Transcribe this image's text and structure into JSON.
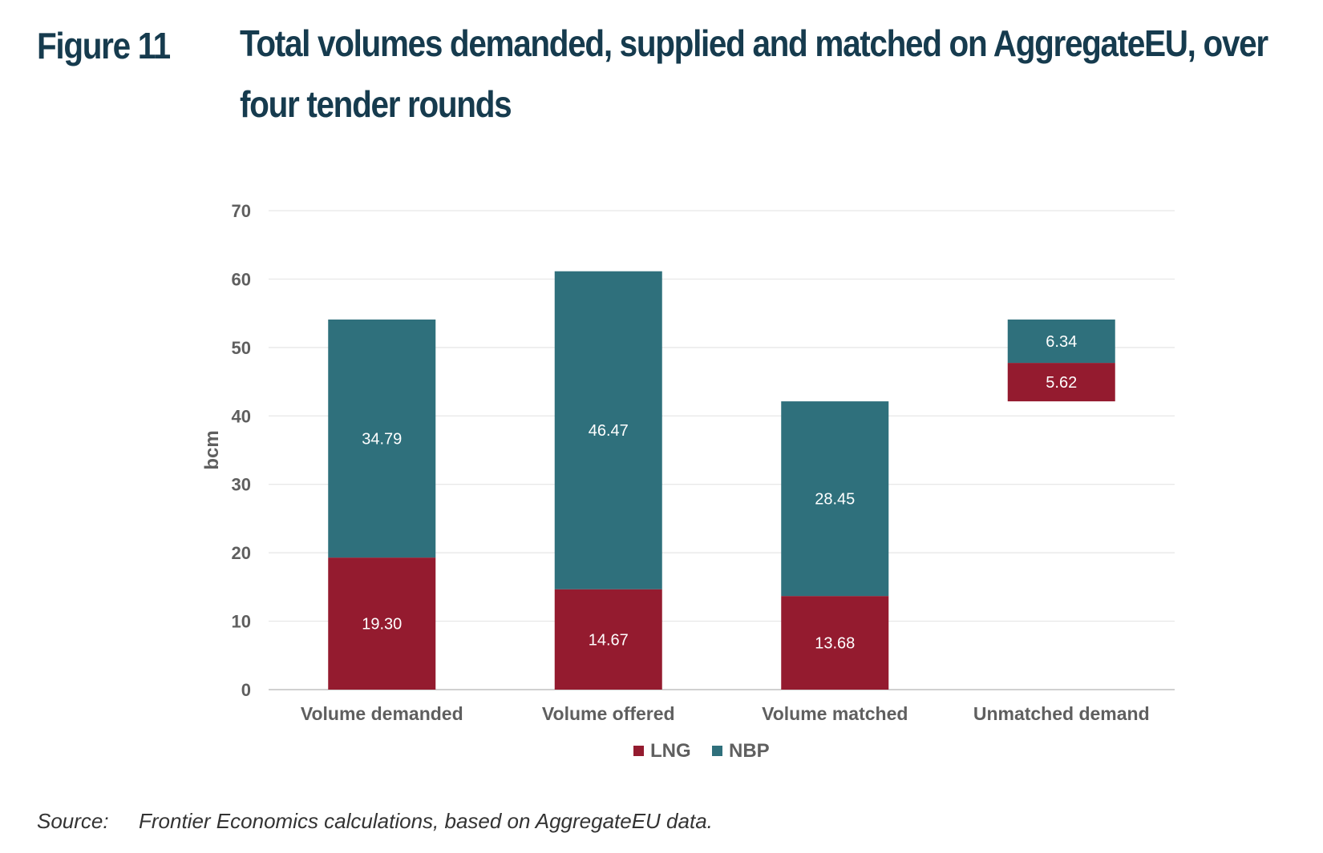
{
  "figure": {
    "number": "Figure 11",
    "title": "Total volumes demanded, supplied and matched on AggregateEU, over four tender rounds"
  },
  "source": {
    "label": "Source:",
    "text": "Frontier Economics calculations, based on AggregateEU data."
  },
  "colors": {
    "LNG": "#941b2f",
    "NBP": "#2f707c",
    "grid": "#e6e6e6",
    "axis_text": "#5f5f5f"
  },
  "chart_data": {
    "type": "bar",
    "stacked": true,
    "title": "",
    "xlabel": "",
    "ylabel": "bcm",
    "ylim": [
      0,
      70
    ],
    "yticks": [
      0,
      10,
      20,
      30,
      40,
      50,
      60,
      70
    ],
    "grid": true,
    "legend_position": "bottom",
    "categories": [
      "Volume demanded",
      "Volume offered",
      "Volume matched",
      "Unmatched demand"
    ],
    "bases": [
      0,
      0,
      0,
      42.13
    ],
    "series": [
      {
        "name": "LNG",
        "values": [
          19.3,
          14.67,
          13.68,
          5.62
        ],
        "labels": [
          "19.30",
          "14.67",
          "13.68",
          "5.62"
        ]
      },
      {
        "name": "NBP",
        "values": [
          34.79,
          46.47,
          28.45,
          6.34
        ],
        "labels": [
          "34.79",
          "46.47",
          "28.45",
          "6.34"
        ]
      }
    ]
  }
}
